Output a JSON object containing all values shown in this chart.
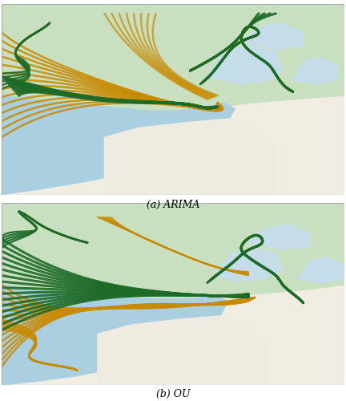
{
  "title_a": "(a) ARIMA",
  "title_b": "(b) OU",
  "fig_width": 4.32,
  "fig_height": 5.0,
  "dpi": 100,
  "bg_paper": "#f2ede3",
  "water_main": "#aacfe0",
  "water_light": "#c5dde8",
  "land_green": "#c8dfc0",
  "land_light": "#ddecd6",
  "urban_cream": "#f0ebe0",
  "green_traj": "#1e6b28",
  "orange_traj": "#c98a00",
  "caption_fontsize": 9,
  "border_color": "#aaaaaa"
}
